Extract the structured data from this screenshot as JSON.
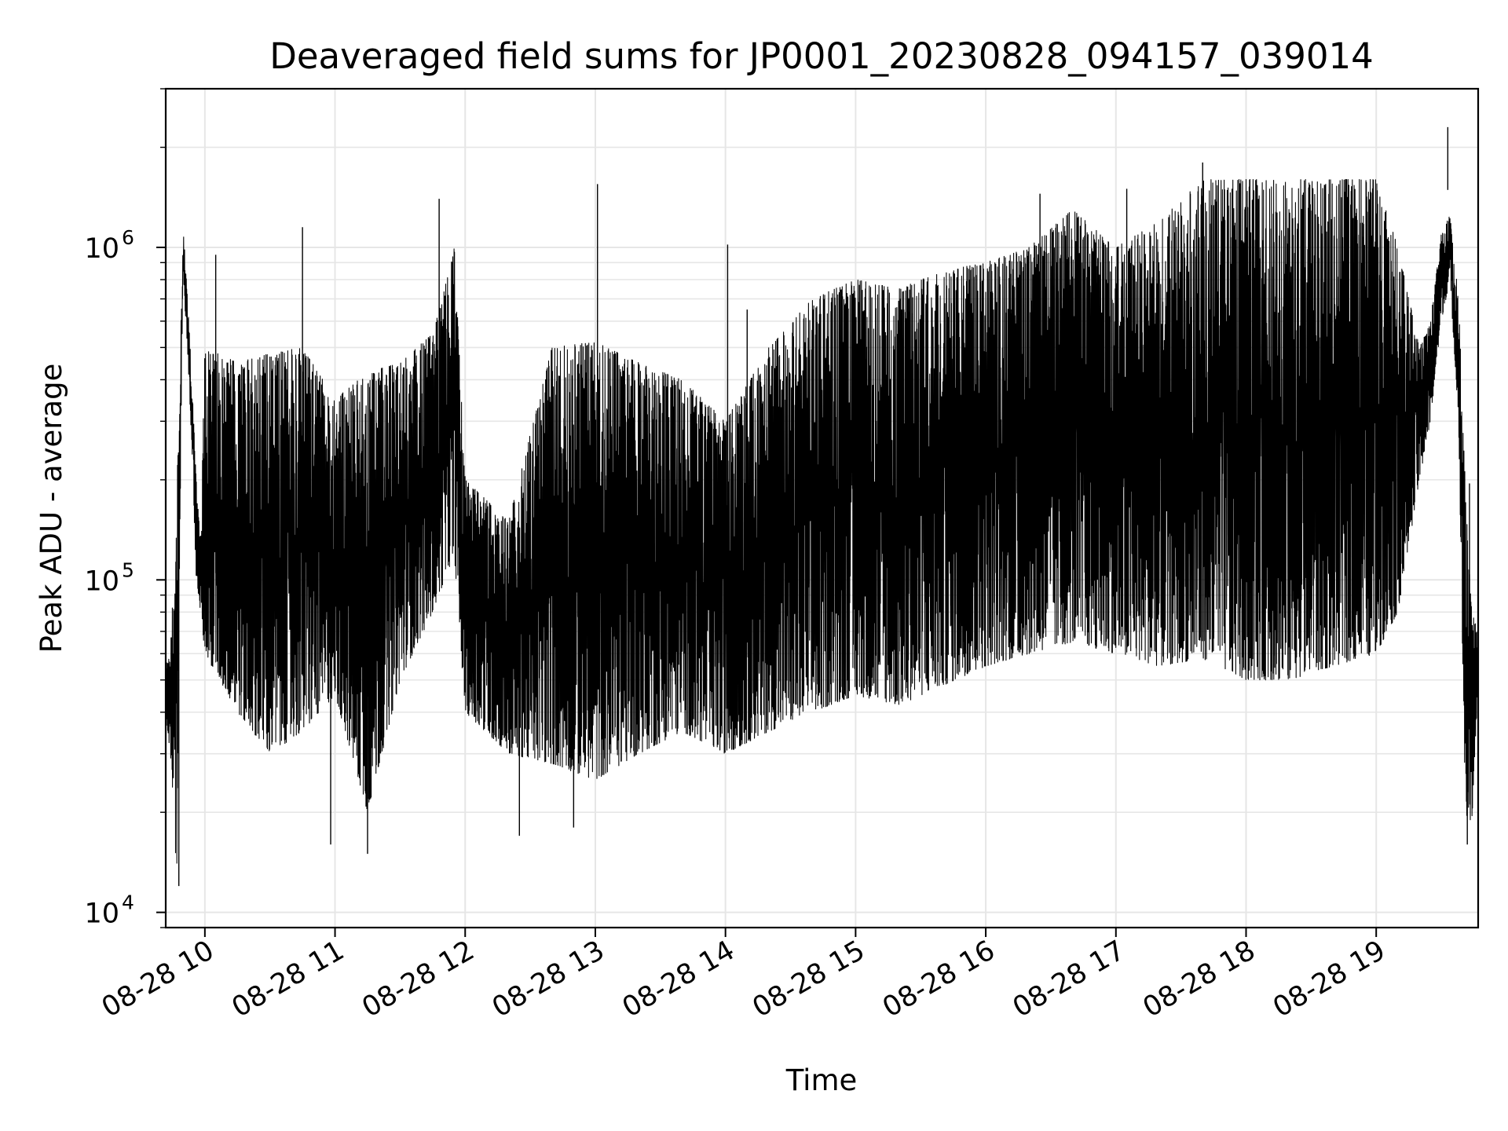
{
  "chart_data": {
    "type": "line",
    "title": "Deaveraged field sums for JP0001_20230828_094157_039014",
    "xlabel": "Time",
    "ylabel": "Peak ADU - average",
    "yscale": "log",
    "ylim": [
      9000,
      3000000
    ],
    "xlim": [
      "2023-08-28 09:41:57",
      "2023-08-28 19:47:00"
    ],
    "grid": true,
    "line_color": "#000000",
    "grid_color": "#e6e6e6",
    "x_ticks": [
      {
        "t": "2023-08-28 10:00",
        "label": "08-28 10"
      },
      {
        "t": "2023-08-28 11:00",
        "label": "08-28 11"
      },
      {
        "t": "2023-08-28 12:00",
        "label": "08-28 12"
      },
      {
        "t": "2023-08-28 13:00",
        "label": "08-28 13"
      },
      {
        "t": "2023-08-28 14:00",
        "label": "08-28 14"
      },
      {
        "t": "2023-08-28 15:00",
        "label": "08-28 15"
      },
      {
        "t": "2023-08-28 16:00",
        "label": "08-28 16"
      },
      {
        "t": "2023-08-28 17:00",
        "label": "08-28 17"
      },
      {
        "t": "2023-08-28 18:00",
        "label": "08-28 18"
      },
      {
        "t": "2023-08-28 19:00",
        "label": "08-28 19"
      }
    ],
    "y_ticks": [
      {
        "value": 10000,
        "base": "10",
        "exp": "4"
      },
      {
        "value": 100000,
        "base": "10",
        "exp": "5"
      },
      {
        "value": 1000000,
        "base": "10",
        "exp": "6"
      }
    ],
    "series": [
      {
        "x": [
          "2023-08-28 09:41:57",
          "2023-08-28 09:44",
          "2023-08-28 09:47",
          "2023-08-28 09:49",
          "2023-08-28 09:50",
          "2023-08-28 09:52",
          "2023-08-28 09:54",
          "2023-08-28 09:56",
          "2023-08-28 09:58",
          "2023-08-28 10:00",
          "2023-08-28 10:15",
          "2023-08-28 10:30",
          "2023-08-28 10:45",
          "2023-08-28 11:00",
          "2023-08-28 11:15",
          "2023-08-28 11:30",
          "2023-08-28 11:45",
          "2023-08-28 11:55",
          "2023-08-28 12:00",
          "2023-08-28 12:20",
          "2023-08-28 12:40",
          "2023-08-28 13:00",
          "2023-08-28 13:20",
          "2023-08-28 13:40",
          "2023-08-28 14:00",
          "2023-08-28 14:20",
          "2023-08-28 14:40",
          "2023-08-28 15:00",
          "2023-08-28 15:20",
          "2023-08-28 15:40",
          "2023-08-28 16:00",
          "2023-08-28 16:20",
          "2023-08-28 16:40",
          "2023-08-28 17:00",
          "2023-08-28 17:20",
          "2023-08-28 17:40",
          "2023-08-28 18:00",
          "2023-08-28 18:20",
          "2023-08-28 18:40",
          "2023-08-28 19:00",
          "2023-08-28 19:10",
          "2023-08-28 19:20",
          "2023-08-28 19:25",
          "2023-08-28 19:30",
          "2023-08-28 19:34",
          "2023-08-28 19:38",
          "2023-08-28 19:41",
          "2023-08-28 19:44",
          "2023-08-28 19:47"
        ],
        "upper": [
          55000,
          60000,
          180000,
          600000,
          1150000,
          700000,
          400000,
          200000,
          130000,
          500000,
          450000,
          480000,
          500000,
          350000,
          420000,
          450000,
          550000,
          1000000,
          200000,
          150000,
          500000,
          520000,
          450000,
          400000,
          300000,
          500000,
          700000,
          800000,
          750000,
          850000,
          900000,
          1000000,
          1300000,
          1000000,
          1200000,
          1600000,
          1600000,
          1600000,
          1600000,
          1600000,
          1000000,
          500000,
          600000,
          1100000,
          1250000,
          700000,
          200000,
          80000,
          70000
        ],
        "lower": [
          40000,
          30000,
          12000,
          300000,
          800000,
          500000,
          250000,
          100000,
          80000,
          60000,
          40000,
          30000,
          35000,
          45000,
          20000,
          50000,
          80000,
          120000,
          40000,
          30000,
          28000,
          25000,
          30000,
          35000,
          30000,
          35000,
          40000,
          45000,
          42000,
          48000,
          55000,
          60000,
          65000,
          60000,
          55000,
          58000,
          50000,
          50000,
          55000,
          60000,
          80000,
          200000,
          300000,
          600000,
          800000,
          300000,
          20000,
          18000,
          50000
        ],
        "spikes": [
          {
            "t": "2023-08-28 10:05",
            "v": 950000
          },
          {
            "t": "2023-08-28 10:45",
            "v": 1150000
          },
          {
            "t": "2023-08-28 11:48",
            "v": 1400000
          },
          {
            "t": "2023-08-28 12:06",
            "v": 140000
          },
          {
            "t": "2023-08-28 13:01",
            "v": 1550000
          },
          {
            "t": "2023-08-28 14:01",
            "v": 1020000
          },
          {
            "t": "2023-08-28 14:10",
            "v": 650000
          },
          {
            "t": "2023-08-28 16:25",
            "v": 1450000
          },
          {
            "t": "2023-08-28 17:05",
            "v": 1500000
          },
          {
            "t": "2023-08-28 17:40",
            "v": 1800000
          },
          {
            "t": "2023-08-28 19:33",
            "v": 2300000
          },
          {
            "t": "2023-08-28 19:43",
            "v": 195000
          }
        ],
        "dips": [
          {
            "t": "2023-08-28 09:48",
            "v": 12000
          },
          {
            "t": "2023-08-28 10:58",
            "v": 16000
          },
          {
            "t": "2023-08-28 11:15",
            "v": 15000
          },
          {
            "t": "2023-08-28 12:25",
            "v": 17000
          },
          {
            "t": "2023-08-28 12:50",
            "v": 18000
          },
          {
            "t": "2023-08-28 19:42",
            "v": 16000
          }
        ]
      }
    ]
  }
}
